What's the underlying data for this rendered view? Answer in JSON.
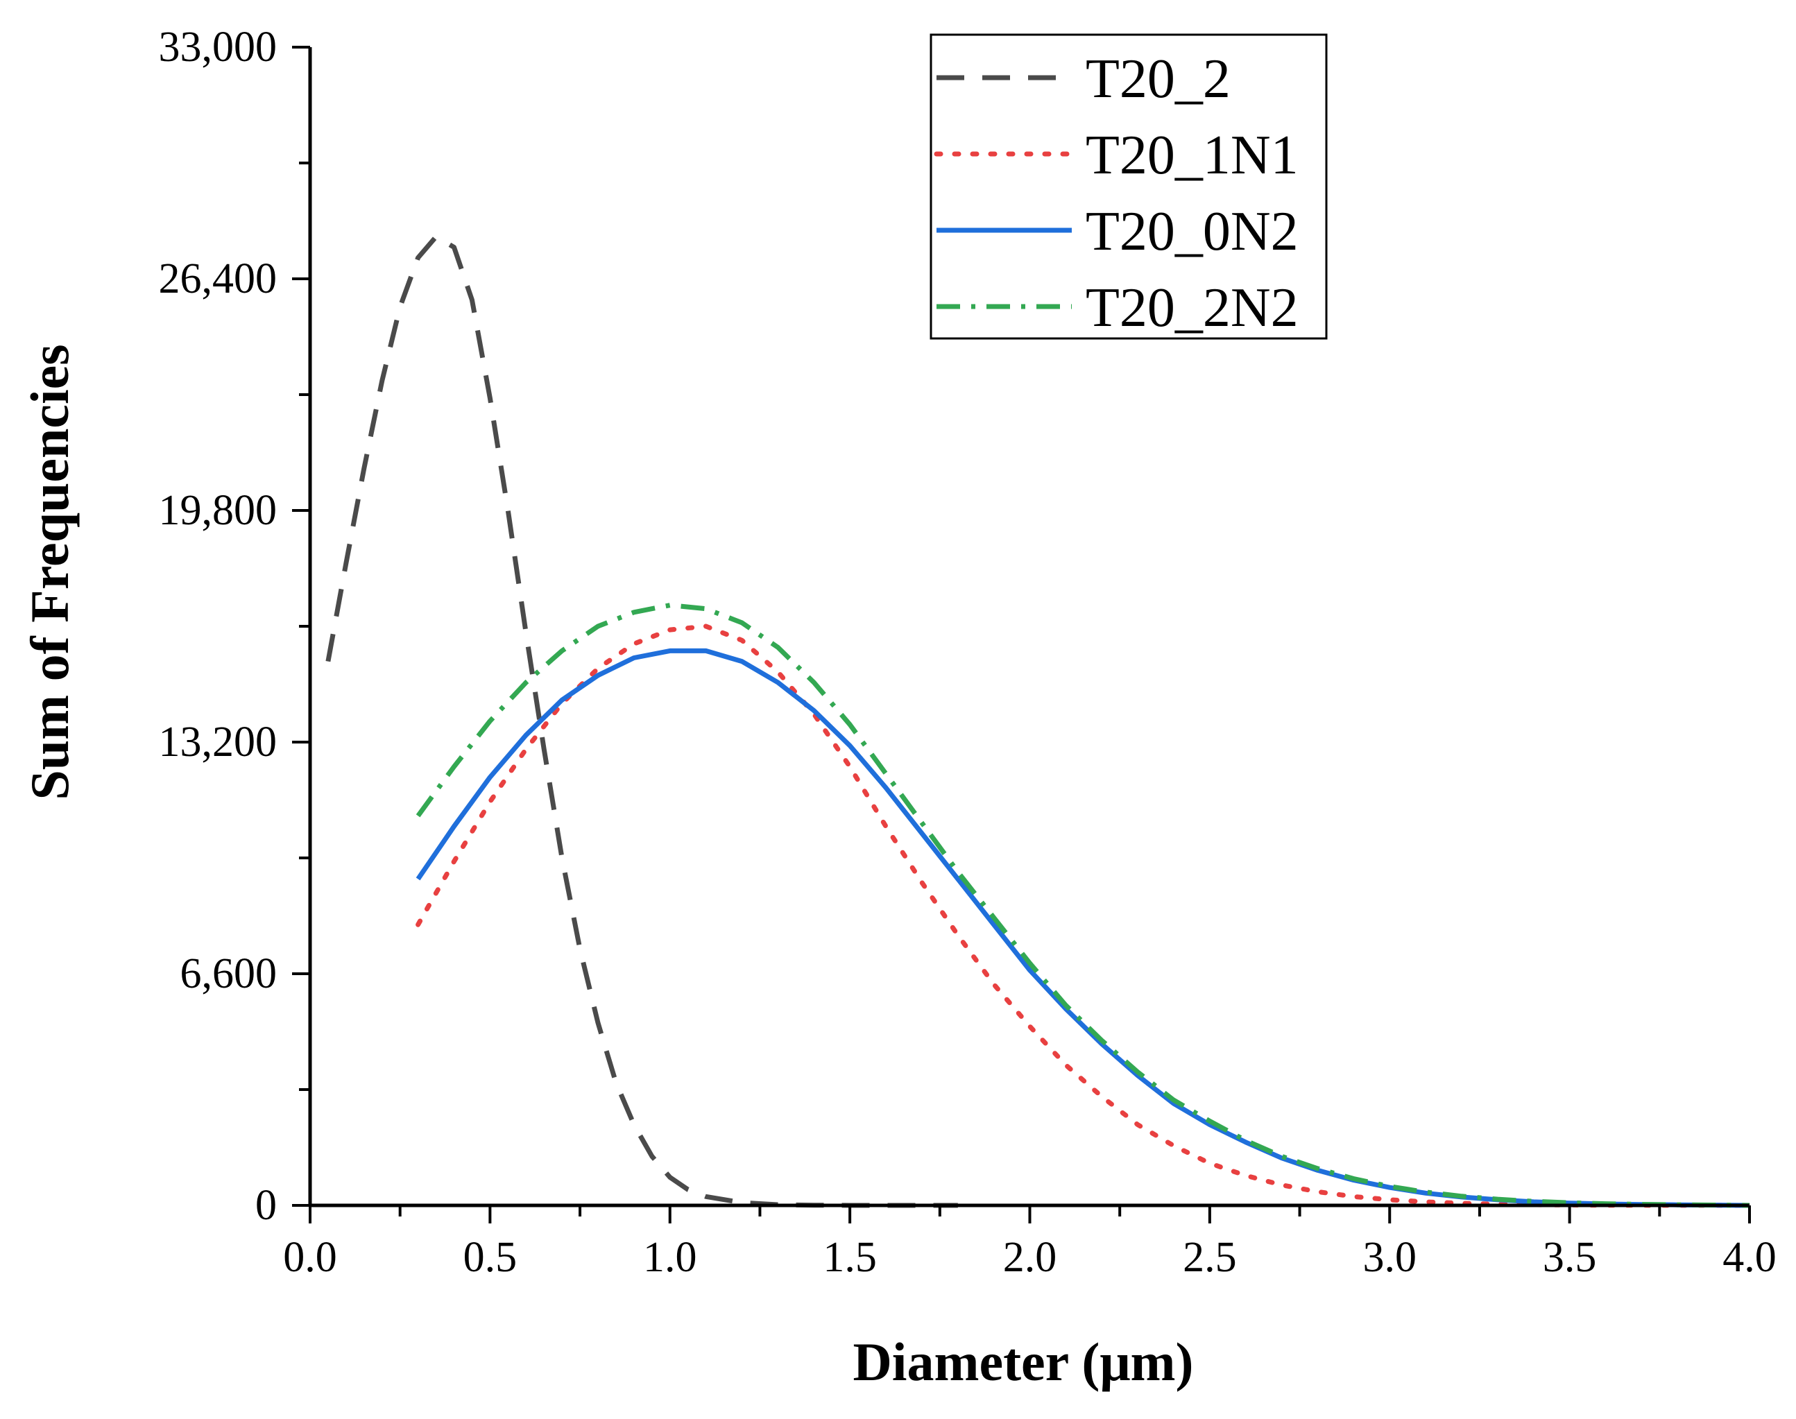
{
  "chart_data": {
    "type": "line",
    "title": "",
    "xlabel": "Diameter (μm)",
    "ylabel": "Sum of Frequencies",
    "xlim": [
      0.0,
      4.0
    ],
    "ylim": [
      0,
      33000
    ],
    "x_ticks": [
      "0.0",
      "0.5",
      "1.0",
      "1.5",
      "2.0",
      "2.5",
      "3.0",
      "3.5",
      "4.0"
    ],
    "y_ticks": [
      "0",
      "6,600",
      "13,200",
      "19,800",
      "26,400",
      "33,000"
    ],
    "grid": false,
    "legend_position": "top-right",
    "series": [
      {
        "name": "T20_2",
        "color": "#4a4a4a",
        "dash": "dashed",
        "x": [
          0.05,
          0.1,
          0.15,
          0.2,
          0.25,
          0.3,
          0.35,
          0.4,
          0.45,
          0.5,
          0.55,
          0.6,
          0.65,
          0.7,
          0.75,
          0.8,
          0.85,
          0.9,
          0.95,
          1.0,
          1.05,
          1.1,
          1.2,
          1.3,
          1.4,
          1.5,
          1.6,
          1.7,
          1.8
        ],
        "y": [
          15500,
          18300,
          21000,
          23500,
          25600,
          27000,
          27600,
          27300,
          25800,
          23000,
          19800,
          16300,
          13000,
          9900,
          7300,
          5200,
          3500,
          2300,
          1400,
          800,
          450,
          250,
          80,
          20,
          5,
          0,
          0,
          0,
          0
        ]
      },
      {
        "name": "T20_1N1",
        "color": "#e84040",
        "dash": "dotted",
        "x": [
          0.3,
          0.4,
          0.5,
          0.6,
          0.7,
          0.8,
          0.9,
          1.0,
          1.1,
          1.2,
          1.3,
          1.4,
          1.5,
          1.6,
          1.7,
          1.8,
          1.9,
          2.0,
          2.1,
          2.2,
          2.3,
          2.4,
          2.5,
          2.6,
          2.7,
          2.8,
          2.9,
          3.0,
          3.1,
          3.2,
          3.3,
          3.4,
          3.5,
          3.6,
          3.7,
          3.8,
          3.9,
          4.0
        ],
        "y": [
          8000,
          9800,
          11500,
          13000,
          14300,
          15300,
          16000,
          16400,
          16500,
          16100,
          15200,
          14000,
          12500,
          10800,
          9200,
          7700,
          6300,
          5100,
          4000,
          3100,
          2300,
          1700,
          1200,
          850,
          580,
          390,
          250,
          160,
          100,
          60,
          35,
          20,
          12,
          6,
          3,
          2,
          1,
          0
        ]
      },
      {
        "name": "T20_0N2",
        "color": "#1f6fdb",
        "dash": "solid",
        "x": [
          0.3,
          0.4,
          0.5,
          0.6,
          0.7,
          0.8,
          0.9,
          1.0,
          1.1,
          1.2,
          1.3,
          1.4,
          1.5,
          1.6,
          1.7,
          1.8,
          1.9,
          2.0,
          2.1,
          2.2,
          2.3,
          2.4,
          2.5,
          2.6,
          2.7,
          2.8,
          2.9,
          3.0,
          3.1,
          3.2,
          3.3,
          3.4,
          3.5,
          3.6,
          3.7,
          3.8,
          3.9,
          4.0
        ],
        "y": [
          9300,
          10800,
          12200,
          13400,
          14400,
          15100,
          15600,
          15800,
          15800,
          15500,
          14900,
          14100,
          13100,
          11900,
          10600,
          9300,
          8000,
          6700,
          5600,
          4600,
          3700,
          2900,
          2300,
          1800,
          1350,
          1000,
          720,
          510,
          350,
          240,
          160,
          100,
          65,
          40,
          25,
          15,
          8,
          0
        ]
      },
      {
        "name": "T20_2N2",
        "color": "#33a852",
        "dash": "dashdot",
        "x": [
          0.3,
          0.4,
          0.5,
          0.6,
          0.7,
          0.8,
          0.9,
          1.0,
          1.1,
          1.2,
          1.3,
          1.4,
          1.5,
          1.6,
          1.7,
          1.8,
          1.9,
          2.0,
          2.1,
          2.2,
          2.3,
          2.4,
          2.5,
          2.6,
          2.7,
          2.8,
          2.9,
          3.0,
          3.1,
          3.2,
          3.3,
          3.4,
          3.5,
          3.6,
          3.7,
          3.8,
          3.9,
          4.0
        ],
        "y": [
          11100,
          12500,
          13800,
          14900,
          15800,
          16500,
          16900,
          17100,
          17000,
          16600,
          15900,
          14900,
          13700,
          12300,
          10900,
          9500,
          8200,
          6900,
          5700,
          4700,
          3800,
          3000,
          2400,
          1850,
          1400,
          1050,
          760,
          540,
          380,
          260,
          175,
          115,
          75,
          48,
          30,
          18,
          10,
          0
        ]
      }
    ]
  }
}
